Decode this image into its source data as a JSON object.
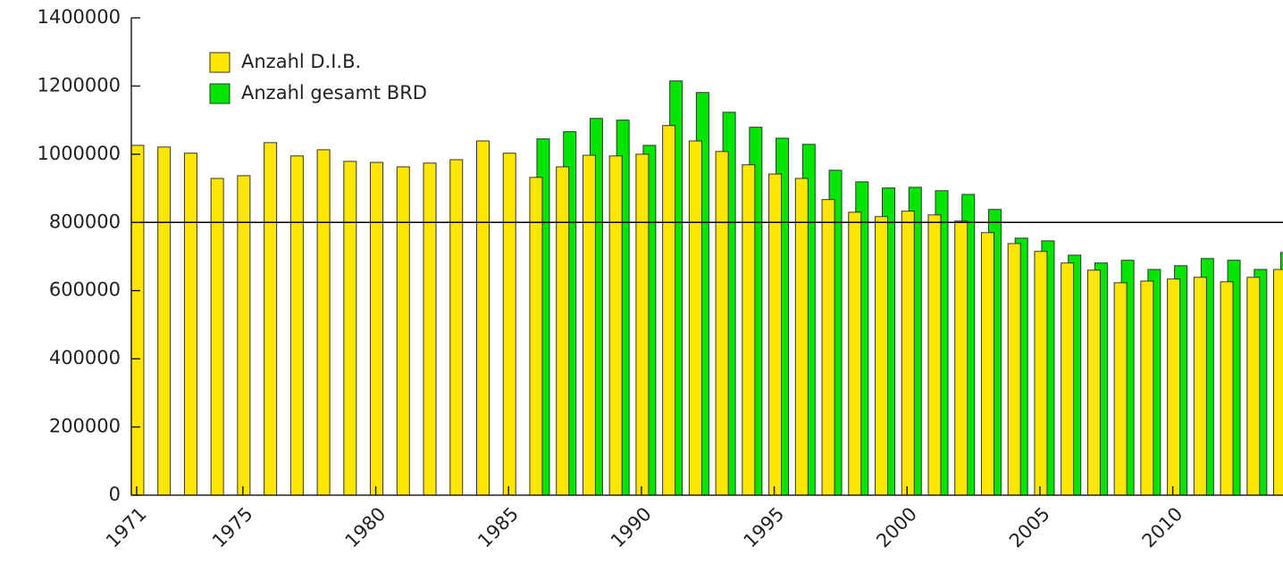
{
  "chart_data": {
    "type": "bar",
    "x": [
      1971,
      1972,
      1973,
      1974,
      1975,
      1976,
      1977,
      1978,
      1979,
      1980,
      1981,
      1982,
      1983,
      1984,
      1985,
      1986,
      1987,
      1988,
      1989,
      1990,
      1991,
      1992,
      1993,
      1994,
      1995,
      1996,
      1997,
      1998,
      1999,
      2000,
      2001,
      2002,
      2003,
      2004,
      2005,
      2006,
      2007,
      2008,
      2009,
      2010,
      2011,
      2012,
      2013,
      2014
    ],
    "series": [
      {
        "name": "Anzahl D.I.B.",
        "color": "#ffe600",
        "values": [
          1026000,
          1021000,
          1003000,
          929000,
          937000,
          1034000,
          995000,
          1013000,
          979000,
          976000,
          963000,
          974000,
          984000,
          1039000,
          1003000,
          932000,
          963000,
          997000,
          995000,
          1000000,
          1084000,
          1039000,
          1008000,
          969000,
          942000,
          929000,
          867000,
          830000,
          817000,
          833000,
          822000,
          804000,
          770000,
          738000,
          715000,
          681000,
          660000,
          623000,
          628000,
          634000,
          639000,
          626000,
          639000,
          662000
        ]
      },
      {
        "name": "Anzahl gesamt BRD",
        "color": "#00e600",
        "values": [
          null,
          null,
          null,
          null,
          null,
          null,
          null,
          null,
          null,
          null,
          null,
          null,
          null,
          null,
          null,
          1045000,
          1066000,
          1105000,
          1100000,
          1026000,
          1215000,
          1181000,
          1123000,
          1079000,
          1047000,
          1029000,
          953000,
          919000,
          901000,
          903000,
          893000,
          882000,
          838000,
          754000,
          746000,
          704000,
          681000,
          689000,
          662000,
          673000,
          694000,
          689000,
          662000,
          712000
        ]
      }
    ],
    "xlim": [
      1970.8,
      2014.15
    ],
    "xticks": [
      1971,
      1975,
      1980,
      1985,
      1990,
      1995,
      2000,
      2005,
      2010
    ],
    "ylim": [
      0,
      1400000
    ],
    "yticks": [
      0,
      200000,
      400000,
      600000,
      800000,
      1000000,
      1200000,
      1400000
    ],
    "reference_line": 800000,
    "legend": "upper left"
  }
}
